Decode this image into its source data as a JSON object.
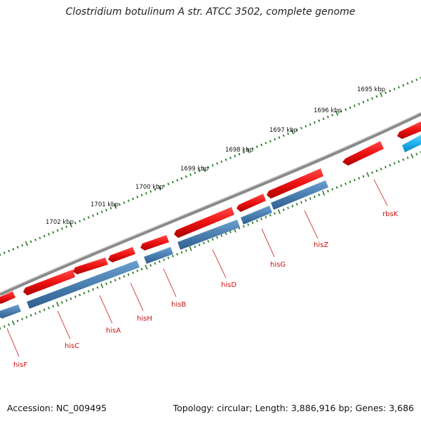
{
  "title": "Clostridium botulinum A str. ATCC 3502, complete genome",
  "accession": "Accession: NC_009495",
  "topology": "Topology: circular; Length: 3,886,916 bp; Genes: 3,686",
  "colors": {
    "backbone": "#8a8a8a",
    "forward_gene": "#ee1111",
    "reverse_gene": "#4a7fb0",
    "reverse_gene_alt": "#1fb0ee",
    "tick": "#2a7a2a",
    "gene_label": "#cc1111",
    "scale_label": "#111111"
  },
  "scale_labels": [
    "1695 kbp",
    "1696 kbp",
    "1697 kbp",
    "1698 kbp",
    "1699 kbp",
    "1700 kbp",
    "1701 kbp",
    "1702 kbp"
  ],
  "gene_labels": [
    "rbsK",
    "hisZ",
    "hisG",
    "hisD",
    "hisB",
    "hisH",
    "hisA",
    "hisC",
    "hisF"
  ]
}
